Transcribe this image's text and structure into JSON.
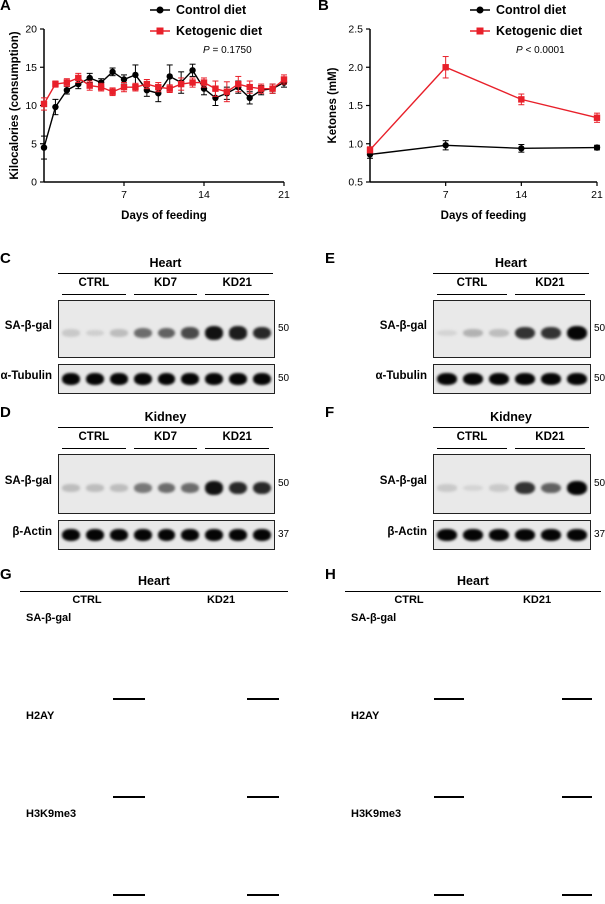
{
  "panels": {
    "A": "A",
    "B": "B",
    "C": "C",
    "D": "D",
    "E": "E",
    "F": "F",
    "G": "G",
    "H": "H"
  },
  "colors": {
    "control": "#000000",
    "ketogenic": "#e8202a"
  },
  "chart_data": [
    {
      "panel": "A",
      "type": "line",
      "ylabel": "Kilocalories (consumption)",
      "xlabel": "Days of feeding",
      "xlim": [
        0,
        21
      ],
      "ylim": [
        0,
        20
      ],
      "xticks": [
        "7",
        "14",
        "21"
      ],
      "yticks": [
        "0",
        "5",
        "10",
        "15",
        "20"
      ],
      "annotation": "P = 0.1750",
      "series": [
        {
          "name": "Control diet",
          "x": [
            0,
            1,
            2,
            3,
            4,
            5,
            6,
            7,
            8,
            9,
            10,
            11,
            12,
            13,
            14,
            15,
            16,
            17,
            18,
            19,
            20,
            21
          ],
          "y": [
            4.5,
            9.8,
            12.0,
            12.8,
            13.6,
            13.0,
            14.4,
            13.4,
            14.0,
            12.0,
            11.6,
            13.8,
            13.0,
            14.6,
            12.2,
            11.0,
            11.6,
            12.4,
            11.0,
            12.0,
            12.2,
            13.0
          ],
          "err": [
            1.5,
            1.0,
            0.5,
            0.6,
            0.6,
            0.5,
            0.5,
            0.6,
            1.3,
            0.8,
            1.1,
            1.5,
            1.4,
            0.8,
            0.8,
            1.0,
            0.8,
            0.8,
            0.8,
            0.6,
            0.6,
            0.6
          ]
        },
        {
          "name": "Ketogenic diet",
          "x": [
            0,
            1,
            2,
            3,
            4,
            5,
            6,
            7,
            8,
            9,
            10,
            11,
            12,
            13,
            14,
            15,
            16,
            17,
            18,
            19,
            20,
            21
          ],
          "y": [
            10.2,
            12.8,
            13.0,
            13.6,
            12.6,
            12.4,
            11.8,
            12.4,
            12.4,
            12.8,
            12.4,
            12.2,
            12.8,
            13.0,
            13.0,
            12.2,
            11.8,
            12.8,
            12.4,
            12.2,
            12.2,
            13.4
          ],
          "err": [
            0.8,
            0.4,
            0.5,
            0.6,
            0.6,
            0.5,
            0.5,
            0.6,
            0.5,
            0.6,
            0.6,
            0.5,
            0.8,
            0.6,
            0.6,
            1.0,
            1.3,
            1.0,
            0.8,
            0.6,
            0.6,
            0.6
          ]
        }
      ]
    },
    {
      "panel": "B",
      "type": "line",
      "ylabel": "Ketones (mM)",
      "xlabel": "Days of feeding",
      "xlim": [
        0,
        21
      ],
      "ylim": [
        0.5,
        2.5
      ],
      "xticks": [
        "7",
        "14",
        "21"
      ],
      "yticks": [
        "0.5",
        "1.0",
        "1.5",
        "2.0",
        "2.5"
      ],
      "annotation": "P < 0.0001",
      "series": [
        {
          "name": "Control diet",
          "x": [
            0,
            7,
            14,
            21
          ],
          "y": [
            0.86,
            0.98,
            0.94,
            0.95
          ],
          "err": [
            0.05,
            0.06,
            0.05,
            0.03
          ]
        },
        {
          "name": "Ketogenic diet",
          "x": [
            0,
            7,
            14,
            21
          ],
          "y": [
            0.92,
            2.0,
            1.58,
            1.34
          ],
          "err": [
            0.04,
            0.14,
            0.07,
            0.06
          ]
        }
      ]
    }
  ],
  "legend": {
    "control": "Control diet",
    "ketogenic": "Ketogenic diet"
  },
  "blots": {
    "C": {
      "title": "Heart",
      "groups": [
        "CTRL",
        "KD7",
        "KD21"
      ],
      "rows": [
        {
          "label": "SA-β-gal",
          "mw": "50",
          "intensity": [
            0.15,
            0.12,
            0.2,
            0.55,
            0.6,
            0.7,
            0.95,
            0.9,
            0.85
          ]
        },
        {
          "label": "α-Tubulin",
          "mw": "50",
          "intensity": [
            1,
            1,
            1,
            1,
            1,
            1,
            1,
            1,
            1
          ]
        }
      ]
    },
    "D": {
      "title": "Kidney",
      "groups": [
        "CTRL",
        "KD7",
        "KD21"
      ],
      "rows": [
        {
          "label": "SA-β-gal",
          "mw": "50",
          "intensity": [
            0.2,
            0.2,
            0.2,
            0.5,
            0.55,
            0.55,
            0.95,
            0.85,
            0.85
          ]
        },
        {
          "label": "β-Actin",
          "mw": "37",
          "intensity": [
            1,
            1,
            1,
            1,
            1,
            1,
            1,
            1,
            1
          ]
        }
      ]
    },
    "E": {
      "title": "Heart",
      "groups": [
        "CTRL",
        "KD21"
      ],
      "rows": [
        {
          "label": "SA-β-gal",
          "mw": "50",
          "intensity": [
            0.1,
            0.25,
            0.2,
            0.8,
            0.8,
            1.0
          ]
        },
        {
          "label": "α-Tubulin",
          "mw": "50",
          "intensity": [
            1,
            1,
            1,
            1,
            1,
            1
          ]
        }
      ]
    },
    "F": {
      "title": "Kidney",
      "groups": [
        "CTRL",
        "KD21"
      ],
      "rows": [
        {
          "label": "SA-β-gal",
          "mw": "50",
          "intensity": [
            0.15,
            0.1,
            0.15,
            0.8,
            0.6,
            1.0
          ]
        },
        {
          "label": "β-Actin",
          "mw": "37",
          "intensity": [
            1,
            1,
            1,
            1,
            1,
            1
          ]
        }
      ]
    }
  },
  "histology": {
    "G": {
      "title": "Heart",
      "cols": [
        "CTRL",
        "KD21"
      ],
      "rows": [
        "SA-β-gal",
        "H2AY",
        "H3K9me3"
      ]
    },
    "H": {
      "title": "Heart",
      "cols": [
        "CTRL",
        "KD21"
      ],
      "rows": [
        "SA-β-gal",
        "H2AY",
        "H3K9me3"
      ]
    }
  }
}
